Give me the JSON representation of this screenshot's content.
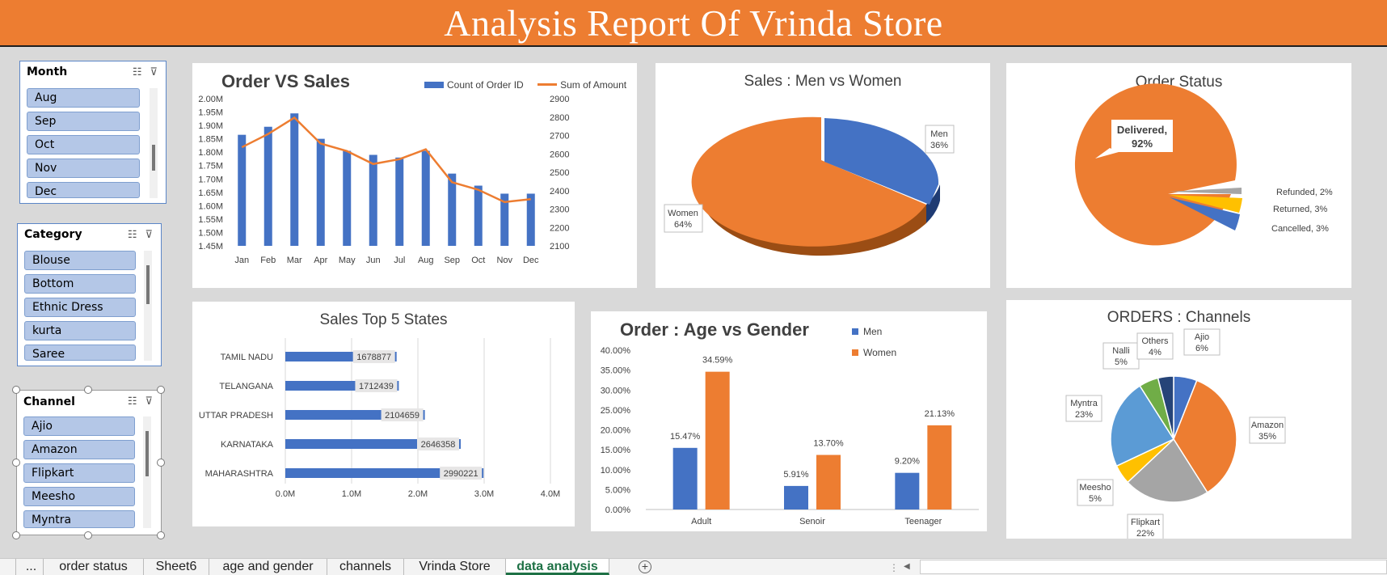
{
  "banner": {
    "title": "Analysis Report Of Vrinda Store",
    "color": "#ed7d31"
  },
  "slicers": {
    "month": {
      "title": "Month",
      "items": [
        "Aug",
        "Sep",
        "Oct",
        "Nov",
        "Dec"
      ]
    },
    "category": {
      "title": "Category",
      "items": [
        "Blouse",
        "Bottom",
        "Ethnic Dress",
        "kurta",
        "Saree"
      ]
    },
    "channel": {
      "title": "Channel",
      "items": [
        "Ajio",
        "Amazon",
        "Flipkart",
        "Meesho",
        "Myntra"
      ]
    }
  },
  "tabs": {
    "items": [
      "...",
      "order status",
      "Sheet6",
      "age and gender",
      "channels",
      "Vrinda Store",
      "data analysis"
    ],
    "active": "data analysis",
    "add_icon": "plus-circle-icon"
  },
  "charts": {
    "order_vs_sales": {
      "title": "Order VS Sales",
      "legend": [
        "Count of Order ID",
        "Sum of Amount"
      ],
      "left_ticks": [
        "2.00M",
        "1.95M",
        "1.90M",
        "1.85M",
        "1.80M",
        "1.75M",
        "1.70M",
        "1.65M",
        "1.60M",
        "1.55M",
        "1.50M",
        "1.45M"
      ],
      "right_ticks": [
        "2900",
        "2800",
        "2700",
        "2600",
        "2500",
        "2400",
        "2300",
        "2200",
        "2100"
      ],
      "months": [
        "Jan",
        "Feb",
        "Mar",
        "Apr",
        "May",
        "Jun",
        "Jul",
        "Aug",
        "Sep",
        "Oct",
        "Nov",
        "Dec"
      ]
    },
    "men_women": {
      "title": "Sales : Men vs Women",
      "labels": [
        {
          "name": "Men",
          "pct": "36%"
        },
        {
          "name": "Women",
          "pct": "64%"
        }
      ]
    },
    "order_status": {
      "title": "Order Status",
      "labels": [
        "Delivered,",
        "92%",
        "Refunded, 2%",
        "Returned, 3%",
        "Cancelled, 3%"
      ]
    },
    "top_states": {
      "title": "Sales Top 5 States",
      "ticks": [
        "0.0M",
        "1.0M",
        "2.0M",
        "3.0M",
        "4.0M"
      ]
    },
    "age_gender": {
      "title": "Order : Age vs Gender",
      "legend": [
        "Men",
        "Women"
      ],
      "ticks": [
        "40.00%",
        "35.00%",
        "30.00%",
        "25.00%",
        "20.00%",
        "15.00%",
        "10.00%",
        "5.00%",
        "0.00%"
      ]
    },
    "channels": {
      "title": "ORDERS : Channels"
    }
  },
  "chart_data": [
    {
      "type": "bar+line",
      "title": "Order VS Sales",
      "categories": [
        "Jan",
        "Feb",
        "Mar",
        "Apr",
        "May",
        "Jun",
        "Jul",
        "Aug",
        "Sep",
        "Oct",
        "Nov",
        "Dec"
      ],
      "series": [
        {
          "name": "Count of Order ID",
          "axis": "left",
          "values": [
            1.865,
            1.895,
            1.945,
            1.85,
            1.805,
            1.79,
            1.78,
            1.805,
            1.72,
            1.675,
            1.645,
            1.645
          ]
        },
        {
          "name": "Sum of Amount",
          "axis": "right",
          "values": [
            2636,
            2708,
            2797,
            2656,
            2615,
            2545,
            2571,
            2625,
            2446,
            2405,
            2338,
            2354
          ]
        }
      ],
      "ylim": [
        1.45,
        2.0
      ],
      "y2lim": [
        2100,
        2900
      ],
      "colors": [
        "#4472c4",
        "#ed7d31"
      ]
    },
    {
      "type": "pie",
      "title": "Sales : Men vs Women",
      "labels": [
        "Men",
        "Women"
      ],
      "values": [
        36,
        64
      ],
      "colors": [
        "#4472c4",
        "#ed7d31"
      ]
    },
    {
      "type": "pie",
      "title": "Order Status",
      "labels": [
        "Delivered",
        "Refunded",
        "Returned",
        "Cancelled"
      ],
      "values": [
        92,
        2,
        3,
        3
      ],
      "colors": [
        "#ed7d31",
        "#a5a5a5",
        "#ffc000",
        "#4472c4"
      ]
    },
    {
      "type": "bar",
      "title": "Sales Top 5 States",
      "categories": [
        "TAMIL NADU",
        "TELANGANA",
        "UTTAR PRADESH",
        "KARNATAKA",
        "MAHARASHTRA"
      ],
      "values": [
        1678877,
        1712439,
        2104659,
        2646358,
        2990221
      ],
      "xlim": [
        0,
        4000000
      ],
      "color": "#4472c4"
    },
    {
      "type": "bar",
      "title": "Order : Age vs Gender",
      "categories": [
        "Adult",
        "Senoir",
        "Teenager"
      ],
      "series": [
        {
          "name": "Men",
          "values": [
            15.47,
            5.91,
            9.2
          ]
        },
        {
          "name": "Women",
          "values": [
            34.59,
            13.7,
            21.13
          ]
        }
      ],
      "value_labels": [
        [
          "15.47%",
          "5.91%",
          "9.20%"
        ],
        [
          "34.59%",
          "13.70%",
          "21.13%"
        ]
      ],
      "ylim": [
        0,
        40
      ],
      "colors": [
        "#4472c4",
        "#ed7d31"
      ]
    },
    {
      "type": "pie",
      "title": "ORDERS : Channels",
      "labels": [
        "Ajio",
        "Amazon",
        "Flipkart",
        "Meesho",
        "Myntra",
        "Nalli",
        "Others"
      ],
      "values": [
        6,
        35,
        22,
        5,
        23,
        5,
        4
      ],
      "colors": [
        "#4472c4",
        "#ed7d31",
        "#a5a5a5",
        "#ffc000",
        "#5b9bd5",
        "#70ad47",
        "#264478"
      ]
    }
  ]
}
